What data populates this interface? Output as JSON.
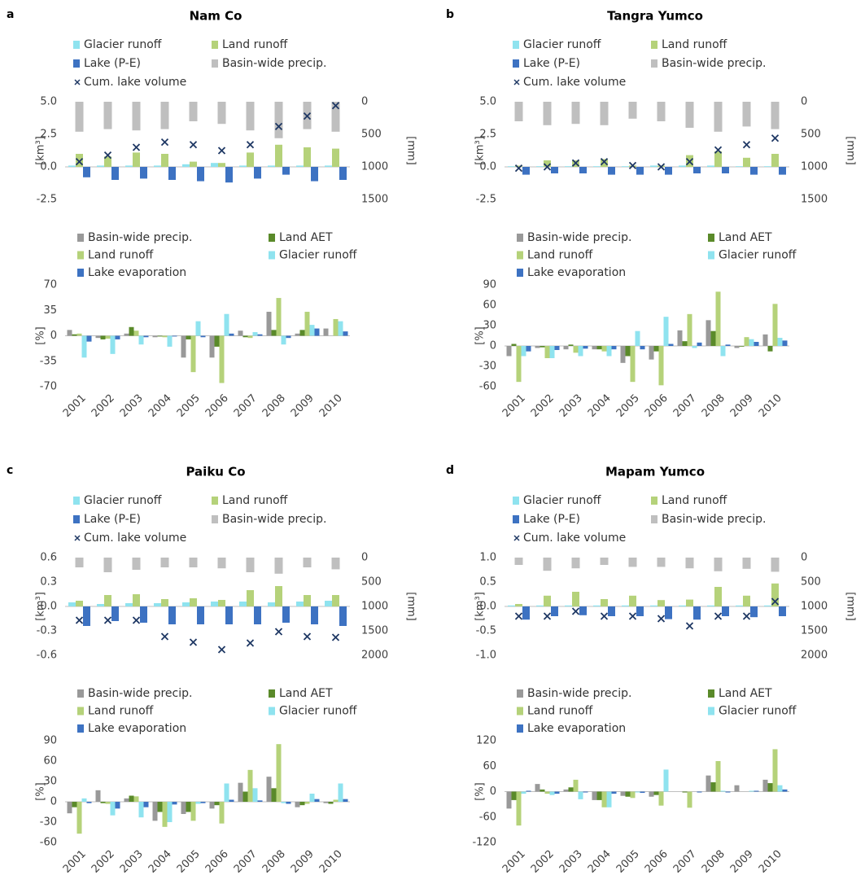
{
  "chart_data": [
    {
      "type": "bar",
      "panel": "a",
      "title": "Nam Co",
      "ylabel": "[km³]",
      "y2label": "[mm]",
      "ylim": [
        -2.5,
        5
      ],
      "yticks": [
        -2.5,
        {
          "value": 0,
          "label": "0.0"
        },
        2.5,
        {
          "value": 5,
          "label": "5.0"
        }
      ],
      "y2lim": [
        1500,
        0
      ],
      "y2ticks": [
        0,
        500,
        1000,
        1500
      ],
      "series": [
        {
          "name": "Glacier runoff",
          "color": "#8fe3ef",
          "values": [
            0.1,
            0.1,
            0.1,
            0.1,
            0.2,
            0.3,
            0.1,
            0.1,
            0.1,
            0.1
          ]
        },
        {
          "name": "Land runoff",
          "color": "#b5d27a",
          "values": [
            1.0,
            0.8,
            1.1,
            1.0,
            0.4,
            0.3,
            1.1,
            1.7,
            1.5,
            1.4
          ]
        },
        {
          "name": "Lake (P-E)",
          "color": "#3d72c2",
          "values": [
            -0.8,
            -1.0,
            -0.9,
            -1.0,
            -1.1,
            -1.2,
            -0.9,
            -0.6,
            -1.1,
            -1.0
          ]
        },
        {
          "name": "Basin-wide precip.",
          "color": "#bfbfbf",
          "axis": "y2",
          "values": [
            460,
            420,
            440,
            420,
            300,
            340,
            440,
            560,
            420,
            460
          ]
        },
        {
          "name": "Cum. lake volume",
          "color": "#1f3864",
          "marker": "x",
          "values": [
            0.4,
            0.9,
            1.5,
            1.9,
            1.7,
            1.25,
            1.7,
            3.1,
            3.9,
            4.7
          ]
        }
      ]
    },
    {
      "type": "bar",
      "ylabel": "[%]",
      "categories": [
        "2001",
        "2002",
        "2003",
        "2004",
        "2005",
        "2006",
        "2007",
        "2008",
        "2009",
        "2010"
      ],
      "ylim": [
        -70,
        70
      ],
      "yticks": [
        -70,
        -35,
        0,
        35,
        70
      ],
      "series": [
        {
          "name": "Basin-wide precip.",
          "color": "#999999",
          "values": [
            8,
            -3,
            3,
            -2,
            -30,
            -30,
            7,
            33,
            3,
            10
          ]
        },
        {
          "name": "Land AET",
          "color": "#5a8a2a",
          "values": [
            2,
            -5,
            12,
            -1,
            -5,
            -15,
            -2,
            8,
            8,
            0
          ]
        },
        {
          "name": "Land runoff",
          "color": "#b5d27a",
          "values": [
            3,
            -4,
            7,
            -2,
            -50,
            -65,
            -3,
            52,
            33,
            23
          ]
        },
        {
          "name": "Glacier runoff",
          "color": "#8fe3ef",
          "values": [
            -30,
            -25,
            -12,
            -15,
            20,
            30,
            5,
            -12,
            15,
            20
          ]
        },
        {
          "name": "Lake evaporation",
          "color": "#3d72c2",
          "values": [
            -8,
            -5,
            -2,
            -1,
            -2,
            3,
            2,
            -3,
            10,
            6
          ]
        }
      ]
    },
    {
      "type": "bar",
      "panel": "b",
      "title": "Tangra Yumco",
      "ylabel": "[km³]",
      "y2label": "[mm]",
      "ylim": [
        -2.5,
        5
      ],
      "yticks": [
        -2.5,
        {
          "value": 0,
          "label": "0.0"
        },
        2.5,
        {
          "value": 5,
          "label": "5.0"
        }
      ],
      "y2lim": [
        1500,
        0
      ],
      "y2ticks": [
        0,
        500,
        1000,
        1500
      ],
      "series": [
        {
          "name": "Glacier runoff",
          "color": "#8fe3ef",
          "values": [
            0.05,
            0.05,
            0.05,
            0.05,
            0.05,
            0.1,
            0.1,
            0.1,
            0.05,
            0.05
          ]
        },
        {
          "name": "Land runoff",
          "color": "#b5d27a",
          "values": [
            0.1,
            0.5,
            0.5,
            0.6,
            0.1,
            0.1,
            0.9,
            1.2,
            0.7,
            1.0
          ]
        },
        {
          "name": "Lake (P-E)",
          "color": "#3d72c2",
          "values": [
            -0.6,
            -0.5,
            -0.5,
            -0.6,
            -0.6,
            -0.6,
            -0.5,
            -0.5,
            -0.6,
            -0.6
          ]
        },
        {
          "name": "Basin-wide precip.",
          "color": "#bfbfbf",
          "axis": "y2",
          "values": [
            300,
            360,
            340,
            360,
            260,
            300,
            400,
            460,
            380,
            420
          ]
        },
        {
          "name": "Cum. lake volume",
          "color": "#1f3864",
          "marker": "x",
          "values": [
            -0.1,
            0.0,
            0.3,
            0.4,
            0.1,
            0.0,
            0.4,
            1.3,
            1.7,
            2.2
          ]
        }
      ]
    },
    {
      "type": "bar",
      "ylabel": "[%]",
      "categories": [
        "2001",
        "2002",
        "2003",
        "2004",
        "2005",
        "2006",
        "2007",
        "2008",
        "2009",
        "2010"
      ],
      "ylim": [
        -60,
        90
      ],
      "yticks": [
        -60,
        -30,
        0,
        30,
        60,
        90
      ],
      "series": [
        {
          "name": "Basin-wide precip.",
          "color": "#999999",
          "values": [
            -15,
            -3,
            -5,
            -5,
            -25,
            -20,
            23,
            38,
            -3,
            17
          ]
        },
        {
          "name": "Land AET",
          "color": "#5a8a2a",
          "values": [
            3,
            -2,
            2,
            -5,
            -15,
            -8,
            7,
            22,
            -1,
            -8
          ]
        },
        {
          "name": "Land runoff",
          "color": "#b5d27a",
          "values": [
            -53,
            -18,
            -10,
            -8,
            -53,
            -58,
            47,
            80,
            13,
            62
          ]
        },
        {
          "name": "Glacier runoff",
          "color": "#8fe3ef",
          "values": [
            -15,
            -18,
            -15,
            -15,
            22,
            43,
            -3,
            -15,
            10,
            12
          ]
        },
        {
          "name": "Lake evaporation",
          "color": "#3d72c2",
          "values": [
            -8,
            -6,
            -4,
            -5,
            -5,
            3,
            5,
            2,
            6,
            8
          ]
        }
      ]
    },
    {
      "type": "bar",
      "panel": "c",
      "title": "Paiku Co",
      "ylabel": "[km³]",
      "y2label": "[mm]",
      "ylim": [
        -0.6,
        0.6
      ],
      "yticks": [
        -0.6,
        -0.3,
        {
          "value": 0,
          "label": "0.0"
        },
        0.3,
        0.6
      ],
      "y2lim": [
        2000,
        0
      ],
      "y2ticks": [
        0,
        500,
        1000,
        1500,
        2000
      ],
      "series": [
        {
          "name": "Glacier runoff",
          "color": "#8fe3ef",
          "values": [
            0.05,
            0.03,
            0.04,
            0.04,
            0.05,
            0.06,
            0.06,
            0.05,
            0.06,
            0.07
          ]
        },
        {
          "name": "Land runoff",
          "color": "#b5d27a",
          "values": [
            0.07,
            0.14,
            0.15,
            0.09,
            0.1,
            0.08,
            0.2,
            0.25,
            0.14,
            0.14
          ]
        },
        {
          "name": "Lake (P-E)",
          "color": "#3d72c2",
          "values": [
            -0.24,
            -0.18,
            -0.2,
            -0.22,
            -0.22,
            -0.22,
            -0.22,
            -0.2,
            -0.22,
            -0.24
          ]
        },
        {
          "name": "Basin-wide precip.",
          "color": "#bfbfbf",
          "axis": "y2",
          "values": [
            200,
            300,
            250,
            200,
            200,
            220,
            300,
            330,
            200,
            240
          ]
        },
        {
          "name": "Cum. lake volume",
          "color": "#1f3864",
          "marker": "x",
          "values": [
            -0.17,
            -0.17,
            -0.17,
            -0.37,
            -0.44,
            -0.53,
            -0.45,
            -0.31,
            -0.37,
            -0.38
          ]
        }
      ]
    },
    {
      "type": "bar",
      "ylabel": "[%]",
      "categories": [
        "2001",
        "2002",
        "2003",
        "2004",
        "2005",
        "2006",
        "2007",
        "2008",
        "2009",
        "2010"
      ],
      "ylim": [
        -60,
        90
      ],
      "yticks": [
        -60,
        -30,
        0,
        30,
        60,
        90
      ],
      "series": [
        {
          "name": "Basin-wide precip.",
          "color": "#999999",
          "values": [
            -17,
            17,
            5,
            -28,
            -18,
            -10,
            28,
            37,
            -8,
            -2
          ]
        },
        {
          "name": "Land AET",
          "color": "#5a8a2a",
          "values": [
            -8,
            -2,
            9,
            -15,
            -15,
            -5,
            15,
            20,
            -5,
            -3
          ]
        },
        {
          "name": "Land runoff",
          "color": "#b5d27a",
          "values": [
            -47,
            -3,
            8,
            -37,
            -28,
            -32,
            47,
            85,
            -3,
            3
          ]
        },
        {
          "name": "Glacier runoff",
          "color": "#8fe3ef",
          "values": [
            5,
            -20,
            -23,
            -30,
            -3,
            27,
            20,
            -2,
            12,
            27
          ]
        },
        {
          "name": "Lake evaporation",
          "color": "#3d72c2",
          "values": [
            -2,
            -10,
            -8,
            -4,
            -2,
            3,
            2,
            -3,
            4,
            4
          ]
        }
      ]
    },
    {
      "type": "bar",
      "panel": "d",
      "title": "Mapam Yumco",
      "ylabel": "[km³]",
      "y2label": "[mm]",
      "ylim": [
        -1,
        1
      ],
      "yticks": [
        {
          "value": -1,
          "label": "-1.0"
        },
        -0.5,
        {
          "value": 0,
          "label": "0.0"
        },
        0.5,
        {
          "value": 1,
          "label": "1.0"
        }
      ],
      "y2lim": [
        2000,
        0
      ],
      "y2ticks": [
        0,
        500,
        1000,
        1500,
        2000
      ],
      "series": [
        {
          "name": "Glacier runoff",
          "color": "#8fe3ef",
          "values": [
            0.02,
            0.02,
            0.02,
            0.02,
            0.02,
            0.02,
            0.02,
            0.02,
            0.02,
            0.02
          ]
        },
        {
          "name": "Land runoff",
          "color": "#b5d27a",
          "values": [
            0.05,
            0.22,
            0.3,
            0.15,
            0.22,
            0.13,
            0.14,
            0.4,
            0.22,
            0.47
          ]
        },
        {
          "name": "Lake (P-E)",
          "color": "#3d72c2",
          "values": [
            -0.27,
            -0.2,
            -0.18,
            -0.2,
            -0.2,
            -0.26,
            -0.27,
            -0.2,
            -0.22,
            -0.2
          ]
        },
        {
          "name": "Basin-wide precip.",
          "color": "#bfbfbf",
          "axis": "y2",
          "values": [
            150,
            270,
            220,
            150,
            190,
            190,
            220,
            280,
            230,
            290
          ]
        },
        {
          "name": "Cum. lake volume",
          "color": "#1f3864",
          "marker": "x",
          "values": [
            -0.2,
            -0.2,
            -0.1,
            -0.2,
            -0.2,
            -0.25,
            -0.4,
            -0.2,
            -0.2,
            0.1
          ]
        }
      ]
    },
    {
      "type": "bar",
      "ylabel": "[%]",
      "categories": [
        "2001",
        "2002",
        "2003",
        "2004",
        "2005",
        "2006",
        "2007",
        "2008",
        "2009",
        "2010"
      ],
      "ylim": [
        -120,
        120
      ],
      "yticks": [
        -120,
        -60,
        0,
        60,
        120
      ],
      "series": [
        {
          "name": "Basin-wide precip.",
          "color": "#999999",
          "values": [
            -40,
            18,
            5,
            -20,
            -10,
            -12,
            0,
            38,
            15,
            28
          ]
        },
        {
          "name": "Land AET",
          "color": "#5a8a2a",
          "values": [
            -20,
            5,
            10,
            -20,
            -12,
            -8,
            -2,
            22,
            0,
            20
          ]
        },
        {
          "name": "Land runoff",
          "color": "#b5d27a",
          "values": [
            -80,
            -5,
            28,
            -37,
            -15,
            -33,
            -38,
            72,
            0,
            100
          ]
        },
        {
          "name": "Glacier runoff",
          "color": "#8fe3ef",
          "values": [
            -5,
            -8,
            -18,
            -37,
            -2,
            52,
            0,
            2,
            2,
            15
          ]
        },
        {
          "name": "Lake evaporation",
          "color": "#3d72c2",
          "values": [
            2,
            -5,
            -2,
            -5,
            -3,
            0,
            -2,
            -2,
            2,
            5
          ]
        }
      ]
    }
  ]
}
